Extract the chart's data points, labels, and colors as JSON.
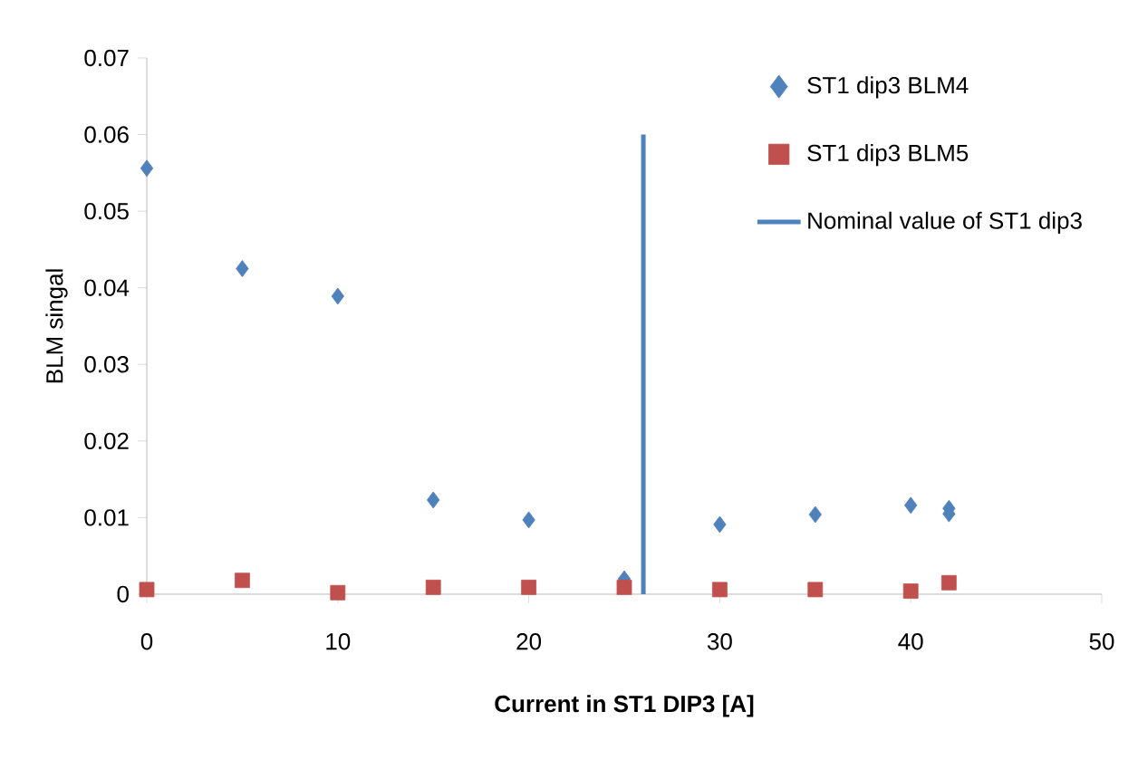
{
  "chart_data": {
    "type": "scatter",
    "xlabel": "Current in ST1 DIP3 [A]",
    "ylabel": "BLM singal",
    "xlim": [
      0,
      50
    ],
    "xticks": [
      0,
      10,
      20,
      30,
      40,
      50
    ],
    "ylim": [
      0,
      0.07
    ],
    "yticks": [
      0,
      0.01,
      0.02,
      0.03,
      0.04,
      0.05,
      0.06,
      0.07
    ],
    "grid": false,
    "legend": "top right",
    "series": [
      {
        "name": "ST1 dip3 BLM4",
        "color": "#4f81bd",
        "marker": "diamond",
        "x": [
          0,
          5,
          10,
          15,
          20,
          25,
          30,
          35,
          40,
          42,
          42
        ],
        "values": [
          0.0556,
          0.0425,
          0.0389,
          0.0123,
          0.0097,
          0.002,
          0.0091,
          0.0104,
          0.0116,
          0.0112,
          0.0105
        ]
      },
      {
        "name": "ST1 dip3 BLM5",
        "color": "#c0504d",
        "marker": "square",
        "x": [
          0,
          5,
          10,
          15,
          20,
          25,
          30,
          35,
          40,
          42
        ],
        "values": [
          0.0006,
          0.0018,
          0.0002,
          0.0009,
          0.0009,
          0.0009,
          0.0006,
          0.0006,
          0.0004,
          0.0015
        ]
      },
      {
        "name": "Nominal value of ST1 dip3",
        "type": "line",
        "color": "#4f81bd",
        "marker": "none",
        "line_style": "solid",
        "x": [
          26,
          26
        ],
        "values": [
          0,
          0.06
        ]
      }
    ]
  }
}
